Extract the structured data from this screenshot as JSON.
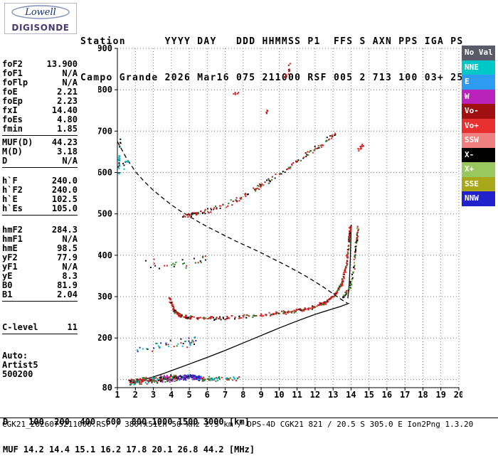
{
  "logo": {
    "line1": "Lowell",
    "line2": "DIGISONDE"
  },
  "header": {
    "line1": "Station      YYYY DAY   DDD HHMMSS P1  FFS S AXN PPS IGA PS",
    "line2": "Campo Grande 2026 Mar16 075 211000 RSF 005 2 713 100 03+ 25"
  },
  "params": {
    "groups": [
      {
        "rows": [
          {
            "label": "foF2",
            "value": "13.900"
          },
          {
            "label": "foF1",
            "value": "N/A"
          },
          {
            "label": "foFlp",
            "value": "N/A"
          },
          {
            "label": "foE",
            "value": "2.21"
          },
          {
            "label": "foEp",
            "value": "2.23"
          },
          {
            "label": "fxI",
            "value": "14.40"
          },
          {
            "label": "foEs",
            "value": "4.80"
          },
          {
            "label": "fmin",
            "value": "1.85"
          }
        ]
      },
      {
        "rows": [
          {
            "label": "MUF(D)",
            "value": "44.23"
          },
          {
            "label": "M(D)",
            "value": "3.18"
          },
          {
            "label": "D",
            "value": "N/A"
          }
        ]
      },
      {
        "rows": [
          {
            "label": "h`F",
            "value": "240.0"
          },
          {
            "label": "h`F2",
            "value": "240.0"
          },
          {
            "label": "h`E",
            "value": "102.5"
          },
          {
            "label": "h`Es",
            "value": "105.0"
          }
        ]
      },
      {
        "rows": [
          {
            "label": "hmF2",
            "value": "284.3"
          },
          {
            "label": "hmF1",
            "value": "N/A"
          },
          {
            "label": "hmE",
            "value": "98.5"
          },
          {
            "label": "yF2",
            "value": "77.9"
          },
          {
            "label": "yF1",
            "value": "N/A"
          },
          {
            "label": "yE",
            "value": "8.3"
          },
          {
            "label": "B0",
            "value": "81.9"
          },
          {
            "label": "B1",
            "value": "2.04"
          }
        ]
      },
      {
        "rows": [
          {
            "label": "C-level",
            "value": "11"
          }
        ]
      }
    ],
    "auto_block": [
      "Auto:",
      "Artist5",
      "500200"
    ]
  },
  "legend": [
    {
      "label": "No Val",
      "color": "#5a5a68"
    },
    {
      "label": "NNE",
      "color": "#00c8c8"
    },
    {
      "label": "E",
      "color": "#2d9bf0"
    },
    {
      "label": "W",
      "color": "#bb22bb"
    },
    {
      "label": "Vo-",
      "color": "#a01010"
    },
    {
      "label": "Vo+",
      "color": "#e83030"
    },
    {
      "label": "SSW",
      "color": "#f08080"
    },
    {
      "label": "X-",
      "color": "#000000"
    },
    {
      "label": "X+",
      "color": "#98c85e"
    },
    {
      "label": "SSE",
      "color": "#a8a818"
    },
    {
      "label": "NNW",
      "color": "#2222cc"
    }
  ],
  "bottom": {
    "d_line": "D    100  200  400  600  800 1000 1500 3000 [km]",
    "muf_line": "MUF 14.2 14.4 15.1 16.2 17.8 20.1 26.8 44.2 [MHz]",
    "footer": "CGK21_2026075211000.RSF / 380fx51Ch 50 kHz 2.5 km / DPS-4D CGK21 821 / 20.5 S 305.0 E Ion2Png 1.3.20"
  },
  "chart_data": {
    "type": "scatter",
    "x_range": [
      1,
      20
    ],
    "y_range": [
      80,
      900
    ],
    "x_unit": "MHz",
    "y_unit": "km",
    "grid": true,
    "x_ticks": [
      1,
      2,
      3,
      4,
      5,
      6,
      7,
      8,
      9,
      10,
      11,
      12,
      13,
      14,
      15,
      16,
      17,
      18,
      19,
      20
    ],
    "y_gridlines": [
      100,
      200,
      300,
      400,
      500,
      600,
      700,
      800,
      900
    ],
    "y_tick_labels": [
      900,
      800,
      700,
      600,
      500,
      400,
      300,
      200,
      80
    ],
    "curves": [
      {
        "name": "true-height-profile",
        "style": "solid",
        "points": [
          [
            1.9,
            86
          ],
          [
            2.1,
            95
          ],
          [
            2.21,
            98
          ],
          [
            2.5,
            100
          ],
          [
            3.0,
            106
          ],
          [
            3.5,
            113
          ],
          [
            4.0,
            121
          ],
          [
            4.5,
            129
          ],
          [
            5.0,
            137
          ],
          [
            6.0,
            153
          ],
          [
            7.0,
            170
          ],
          [
            8.0,
            188
          ],
          [
            9.0,
            206
          ],
          [
            10.0,
            224
          ],
          [
            11.0,
            241
          ],
          [
            12.0,
            257
          ],
          [
            12.8,
            268
          ],
          [
            13.4,
            276
          ],
          [
            13.9,
            284
          ]
        ]
      },
      {
        "name": "trace-fit-asymptote",
        "style": "solid",
        "points": [
          [
            13.82,
            296
          ],
          [
            13.9,
            330
          ],
          [
            13.96,
            390
          ],
          [
            14.0,
            455
          ],
          [
            14.02,
            474
          ]
        ]
      },
      {
        "name": "muf-transmission-curve",
        "style": "dashed",
        "points": [
          [
            1.0,
            675
          ],
          [
            1.5,
            635
          ],
          [
            2.0,
            602
          ],
          [
            2.5,
            578
          ],
          [
            3.0,
            557
          ],
          [
            3.5,
            539
          ],
          [
            4.0,
            522
          ],
          [
            4.5,
            507
          ],
          [
            5.0,
            494
          ],
          [
            5.5,
            481
          ],
          [
            6.0,
            469
          ],
          [
            6.5,
            458
          ],
          [
            7.0,
            447
          ],
          [
            7.5,
            436
          ],
          [
            8.0,
            426
          ],
          [
            8.5,
            416
          ],
          [
            9.0,
            406
          ],
          [
            9.5,
            395
          ],
          [
            10.0,
            384
          ],
          [
            10.5,
            373
          ],
          [
            11.0,
            361
          ],
          [
            11.5,
            349
          ],
          [
            12.0,
            336
          ],
          [
            12.5,
            322
          ],
          [
            12.9,
            310
          ],
          [
            13.3,
            298
          ],
          [
            13.6,
            289
          ],
          [
            13.8,
            284
          ]
        ]
      }
    ],
    "traces": [
      {
        "name": "e-layer-left",
        "n": 130,
        "f_spread": 0.12,
        "h_spread": 9,
        "path": [
          [
            1.7,
            93
          ],
          [
            2.4,
            96
          ],
          [
            3.4,
            99
          ]
        ],
        "colors": [
          "#cc2020",
          "#101010",
          "#00b8c8",
          "#208020",
          "#cc2020"
        ]
      },
      {
        "name": "e-layer-mid",
        "n": 85,
        "f_spread": 0.1,
        "h_spread": 10,
        "path": [
          [
            3.4,
            100
          ],
          [
            4.3,
            104
          ]
        ],
        "colors": [
          "#cc2020",
          "#208020",
          "#101010",
          "#bb22bb"
        ]
      },
      {
        "name": "es-layer-blue-cluster",
        "n": 150,
        "f_spread": 0.1,
        "h_spread": 7,
        "path": [
          [
            4.3,
            103
          ],
          [
            5.0,
            106
          ],
          [
            5.7,
            103
          ]
        ],
        "colors": [
          "#2525c8",
          "#2525c8",
          "#2525c8",
          "#bb22bb",
          "#101010",
          "#2d9bf0"
        ]
      },
      {
        "name": "e-layer-right",
        "n": 55,
        "f_spread": 0.12,
        "h_spread": 7,
        "path": [
          [
            5.7,
            100
          ],
          [
            6.6,
            101
          ],
          [
            7.9,
            103
          ]
        ],
        "colors": [
          "#cc2020",
          "#208020",
          "#00b8c8"
        ]
      },
      {
        "name": "es-second-stratum",
        "n": 42,
        "f_spread": 0.15,
        "h_spread": 14,
        "path": [
          [
            2.1,
            172
          ],
          [
            3.3,
            180
          ],
          [
            4.7,
            186
          ],
          [
            5.5,
            196
          ]
        ],
        "colors": [
          "#cc2020",
          "#101010",
          "#208020",
          "#2525c8",
          "#00b8c8"
        ]
      },
      {
        "name": "mid-scatter",
        "n": 30,
        "f_spread": 0.15,
        "h_spread": 16,
        "path": [
          [
            2.4,
            382
          ],
          [
            3.7,
            375
          ],
          [
            5.0,
            382
          ],
          [
            5.9,
            392
          ]
        ],
        "colors": [
          "#cc2020",
          "#101010",
          "#208020"
        ]
      },
      {
        "name": "f-trace-o-mode",
        "n": 430,
        "f_spread": 0.07,
        "h_spread": 5,
        "path": [
          [
            3.9,
            296
          ],
          [
            4.15,
            266
          ],
          [
            4.5,
            253
          ],
          [
            5.2,
            248
          ],
          [
            6.5,
            247
          ],
          [
            8.0,
            251
          ],
          [
            9.5,
            257
          ],
          [
            10.8,
            264
          ],
          [
            11.8,
            273
          ],
          [
            12.6,
            286
          ],
          [
            13.1,
            303
          ],
          [
            13.5,
            332
          ],
          [
            13.75,
            378
          ],
          [
            13.9,
            440
          ],
          [
            13.97,
            472
          ]
        ],
        "colors": [
          "#cc1515",
          "#e03030",
          "#991111",
          "#101010",
          "#208020",
          "#cc1515",
          "#e03030"
        ]
      },
      {
        "name": "f-trace-x-mode-tail",
        "n": 90,
        "f_spread": 0.07,
        "h_spread": 5,
        "path": [
          [
            13.55,
            298
          ],
          [
            13.95,
            322
          ],
          [
            14.15,
            365
          ],
          [
            14.3,
            428
          ],
          [
            14.4,
            470
          ]
        ],
        "colors": [
          "#208020",
          "#98c85e",
          "#101010",
          "#cc1515"
        ]
      },
      {
        "name": "f-trace-second-order",
        "n": 170,
        "f_spread": 0.08,
        "h_spread": 8,
        "path": [
          [
            4.6,
            492
          ],
          [
            5.2,
            500
          ],
          [
            6.0,
            507
          ],
          [
            7.0,
            520
          ],
          [
            8.0,
            541
          ],
          [
            9.0,
            567
          ],
          [
            10.0,
            597
          ],
          [
            10.8,
            621
          ],
          [
            11.6,
            645
          ],
          [
            12.4,
            669
          ],
          [
            13.1,
            691
          ]
        ],
        "colors": [
          "#cc1515",
          "#991111",
          "#208020",
          "#101010",
          "#e03030"
        ]
      },
      {
        "name": "spread-left-column",
        "n": 26,
        "f_spread": 0.06,
        "h_spread": 10,
        "path": [
          [
            1.08,
            590
          ],
          [
            1.12,
            640
          ],
          [
            1.18,
            688
          ]
        ],
        "colors": [
          "#00b8c8",
          "#00b8c8",
          "#101010"
        ]
      },
      {
        "name": "spread-left-2",
        "n": 8,
        "f_spread": 0.1,
        "h_spread": 12,
        "path": [
          [
            1.35,
            615
          ],
          [
            1.55,
            630
          ]
        ],
        "colors": [
          "#101010",
          "#00b8c8"
        ]
      },
      {
        "name": "top-cluster-1",
        "n": 14,
        "f_spread": 0.1,
        "h_spread": 9,
        "path": [
          [
            10.35,
            828
          ],
          [
            10.5,
            844
          ],
          [
            10.6,
            858
          ]
        ],
        "colors": [
          "#cc1515",
          "#991111"
        ]
      },
      {
        "name": "top-cluster-2",
        "n": 6,
        "f_spread": 0.08,
        "h_spread": 5,
        "path": [
          [
            7.5,
            789
          ],
          [
            7.75,
            796
          ]
        ],
        "colors": [
          "#cc1515",
          "#e03030"
        ]
      },
      {
        "name": "top-cluster-3",
        "n": 5,
        "f_spread": 0.08,
        "h_spread": 5,
        "path": [
          [
            9.25,
            744
          ],
          [
            9.4,
            750
          ]
        ],
        "colors": [
          "#cc1515"
        ]
      },
      {
        "name": "right-cluster",
        "n": 12,
        "f_spread": 0.1,
        "h_spread": 6,
        "path": [
          [
            14.38,
            650
          ],
          [
            14.55,
            660
          ],
          [
            14.68,
            668
          ]
        ],
        "colors": [
          "#cc1515",
          "#e03030"
        ]
      }
    ]
  }
}
